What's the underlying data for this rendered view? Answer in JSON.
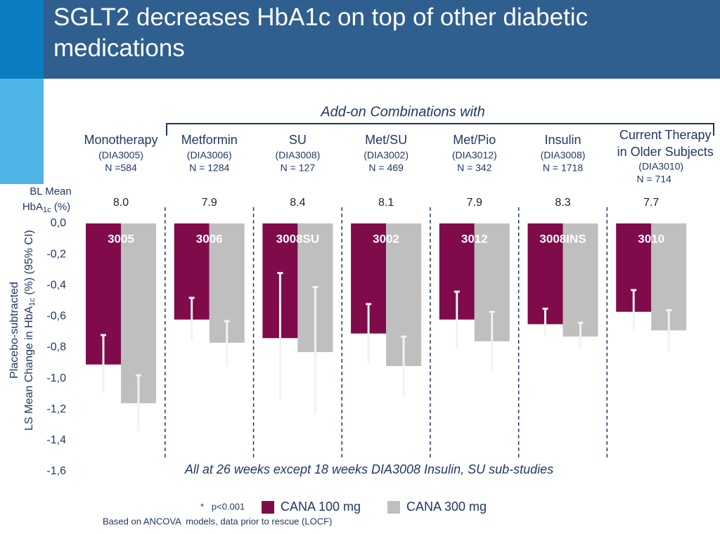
{
  "header": {
    "title": [
      "SGLT2 decreases HbA1c on top of other diabetic",
      "medications"
    ]
  },
  "chart_data": {
    "type": "bar",
    "group_heading": "Add-on Combinations with",
    "categories": [
      "3005",
      "3006",
      "3008SU",
      "3002",
      "3012",
      "3008INS",
      "3010"
    ],
    "groups": [
      {
        "name": "Monotherapy",
        "study": "(DIA3005)",
        "n": "N =584"
      },
      {
        "name": "Metformin",
        "study": "(DIA3006)",
        "n": "N = 1284"
      },
      {
        "name": "SU",
        "study": "(DIA3008)",
        "n": "N = 127"
      },
      {
        "name": "Met/SU",
        "study": "(DIA3002)",
        "n": "N = 469"
      },
      {
        "name": "Met/Pio",
        "study": "(DIA3012)",
        "n": "N = 342"
      },
      {
        "name": "Insulin",
        "study": "(DIA3008)",
        "n": "N = 1718"
      },
      {
        "name": [
          "Current Therapy",
          "in Older Subjects"
        ],
        "study": "(DIA3010)",
        "n": "N = 714"
      }
    ],
    "baseline_label": {
      "line1": "BL Mean",
      "line2": "HbA",
      "sub": "1c",
      "unit": " (%)"
    },
    "baseline_values": [
      "8.0",
      "7.9",
      "8.4",
      "8.1",
      "7.9",
      "8.3",
      "7.7"
    ],
    "ylabel": {
      "line1": "Placebo-subtracted",
      "line2": "LS Mean Change in HbA",
      "sub": "1c",
      "unit": " (%) (95% CI)"
    },
    "ylim": [
      -1.6,
      0
    ],
    "yticks": [
      {
        "value": 0,
        "label": "0,0"
      },
      {
        "value": -0.2,
        "label": "-0,2"
      },
      {
        "value": -0.4,
        "label": "-0,4"
      },
      {
        "value": -0.6,
        "label": "-0,6"
      },
      {
        "value": -0.8,
        "label": "-0,8"
      },
      {
        "value": -1.0,
        "label": "-1,0"
      },
      {
        "value": -1.2,
        "label": "-1,2"
      },
      {
        "value": -1.4,
        "label": "-1,4"
      },
      {
        "value": -1.6,
        "label": "-1,6"
      }
    ],
    "series": [
      {
        "name": "CANA 100 mg",
        "color": "#7f0b4a",
        "values": [
          -0.91,
          -0.62,
          -0.74,
          -0.71,
          -0.62,
          -0.65,
          -0.57
        ],
        "ci_upper": [
          -0.72,
          -0.48,
          -0.32,
          -0.52,
          -0.44,
          -0.55,
          -0.43
        ],
        "ci_lower": [
          -1.09,
          -0.76,
          -1.14,
          -0.9,
          -0.81,
          -0.73,
          -0.7
        ]
      },
      {
        "name": "CANA 300 mg",
        "color": "#bfbfbf",
        "values": [
          -1.16,
          -0.77,
          -0.83,
          -0.92,
          -0.76,
          -0.73,
          -0.69
        ],
        "ci_upper": [
          -0.98,
          -0.63,
          -0.41,
          -0.73,
          -0.57,
          -0.64,
          -0.56
        ],
        "ci_lower": [
          -1.34,
          -0.92,
          -1.23,
          -1.12,
          -0.95,
          -0.81,
          -0.83
        ]
      }
    ],
    "note": "All at 26 weeks except 18 weeks DIA3008 Insulin, SU sub-studies",
    "significance": "*   p<0.001",
    "footnote": "Based on ANCOVA  models, data prior to rescue (LOCF)"
  }
}
